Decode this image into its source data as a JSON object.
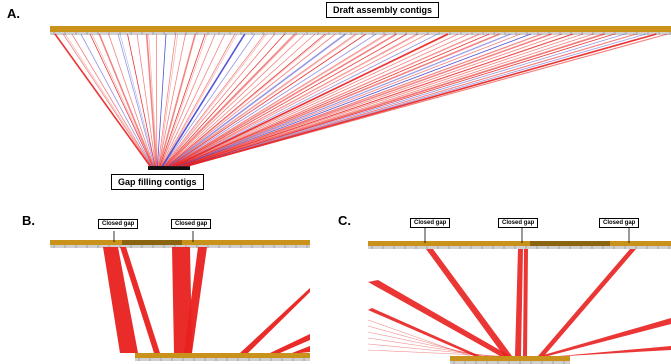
{
  "panels": {
    "a": {
      "letter": "A.",
      "top_label": "Draft assembly contigs",
      "bottom_label": "Gap filling contigs"
    },
    "b": {
      "letter": "B.",
      "gap_labels": [
        "Closed gap",
        "Closed gap"
      ]
    },
    "c": {
      "letter": "C.",
      "gap_labels": [
        "Closed gap",
        "Closed gap",
        "Closed gap"
      ]
    }
  },
  "colors": {
    "contig_bar": "#c9921a",
    "match_forward": "#e8201e",
    "match_reverse": "#4040d0",
    "gap_fill_bar": "#111111"
  }
}
